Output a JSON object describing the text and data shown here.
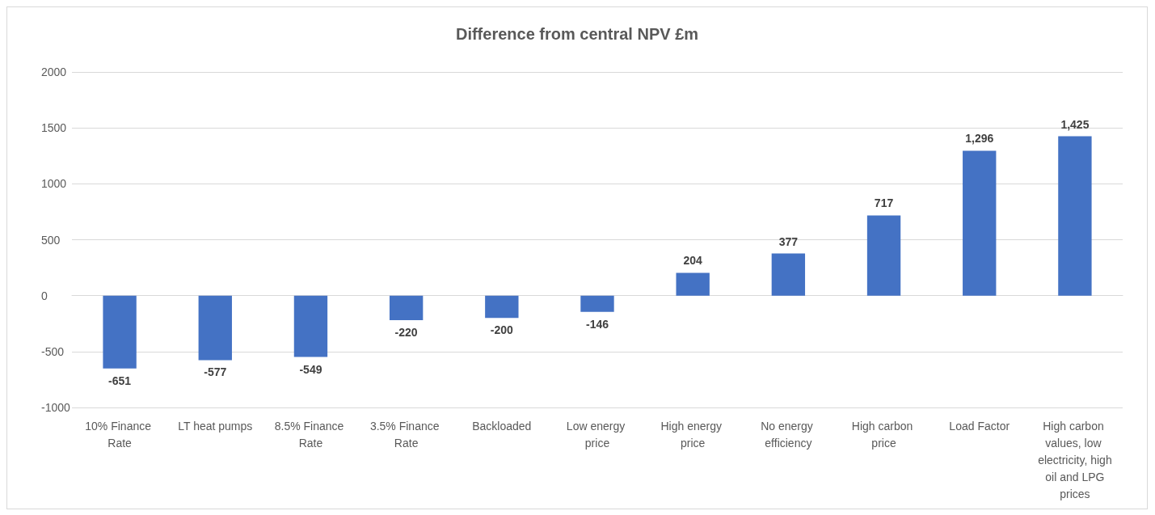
{
  "chart_data": {
    "type": "bar",
    "title": "Difference from central NPV £m",
    "categories": [
      "10% Finance Rate",
      "LT heat pumps",
      "8.5% Finance Rate",
      "3.5% Finance Rate",
      "Backloaded",
      "Low energy price",
      "High energy price",
      "No energy efficiency",
      "High carbon price",
      "Load Factor",
      "High carbon values, low electricity, high oil and LPG prices"
    ],
    "values": [
      -651,
      -577,
      -549,
      -220,
      -200,
      -146,
      204,
      377,
      717,
      1296,
      1425
    ],
    "value_labels": [
      "-651",
      "-577",
      "-549",
      "-220",
      "-200",
      "-146",
      "204",
      "377",
      "717",
      "1,296",
      "1,425"
    ],
    "color": "#4472c4",
    "ylim": [
      -1000,
      2000
    ],
    "yticks": [
      -1000,
      -500,
      0,
      500,
      1000,
      1500,
      2000
    ],
    "grid": "y"
  }
}
